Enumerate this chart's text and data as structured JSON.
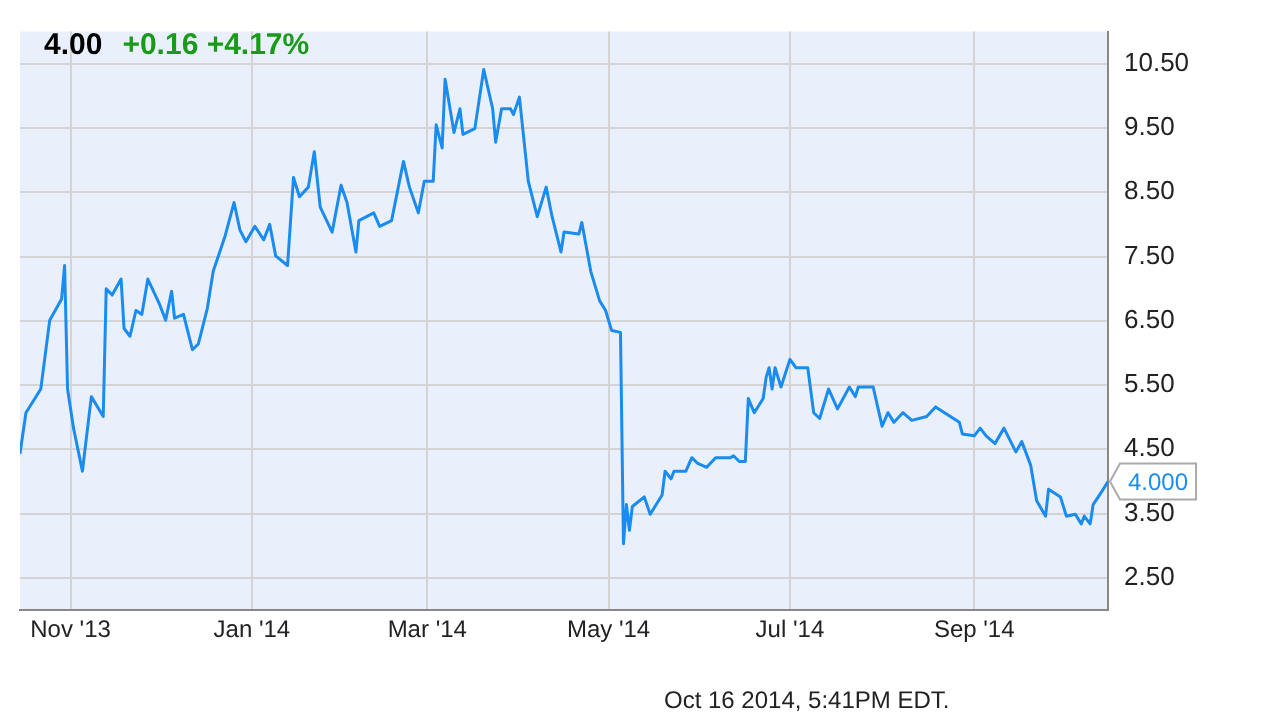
{
  "chart_data": {
    "type": "line",
    "title": "4.00",
    "subtitle": "+0.16 +4.17%",
    "x": [
      "2013-10-15",
      "2013-10-17",
      "2013-10-22",
      "2013-10-25",
      "2013-10-29",
      "2013-10-30",
      "2013-10-31",
      "2013-11-02",
      "2013-11-05",
      "2013-11-08",
      "2013-11-12",
      "2013-11-13",
      "2013-11-15",
      "2013-11-18",
      "2013-11-19",
      "2013-11-21",
      "2013-11-23",
      "2013-11-25",
      "2013-11-27",
      "2013-12-01",
      "2013-12-03",
      "2013-12-05",
      "2013-12-06",
      "2013-12-09",
      "2013-12-12",
      "2013-12-14",
      "2013-12-17",
      "2013-12-19",
      "2013-12-23",
      "2013-12-26",
      "2013-12-28",
      "2013-12-30",
      "2014-01-02",
      "2014-01-05",
      "2014-01-07",
      "2014-01-09",
      "2014-01-13",
      "2014-01-15",
      "2014-01-17",
      "2014-01-20",
      "2014-01-22",
      "2014-01-24",
      "2014-01-28",
      "2014-01-31",
      "2014-02-02",
      "2014-02-05",
      "2014-02-06",
      "2014-02-11",
      "2014-02-13",
      "2014-02-17",
      "2014-02-21",
      "2014-02-23",
      "2014-02-26",
      "2014-02-28",
      "2014-03-03",
      "2014-03-04",
      "2014-03-06",
      "2014-03-07",
      "2014-03-10",
      "2014-03-12",
      "2014-03-13",
      "2014-03-17",
      "2014-03-20",
      "2014-03-23",
      "2014-03-24",
      "2014-03-26",
      "2014-03-29",
      "2014-03-30",
      "2014-04-01",
      "2014-04-04",
      "2014-04-07",
      "2014-04-10",
      "2014-04-12",
      "2014-04-15",
      "2014-04-16",
      "2014-04-21",
      "2014-04-22",
      "2014-04-25",
      "2014-04-28",
      "2014-04-30",
      "2014-05-02",
      "2014-05-05",
      "2014-05-06",
      "2014-05-07",
      "2014-05-08",
      "2014-05-09",
      "2014-05-13",
      "2014-05-15",
      "2014-05-19",
      "2014-05-20",
      "2014-05-22",
      "2014-05-23",
      "2014-05-27",
      "2014-05-29",
      "2014-05-31",
      "2014-06-03",
      "2014-06-06",
      "2014-06-11",
      "2014-06-12",
      "2014-06-14",
      "2014-06-16",
      "2014-06-17",
      "2014-06-19",
      "2014-06-22",
      "2014-06-23",
      "2014-06-24",
      "2014-06-25",
      "2014-06-26",
      "2014-06-28",
      "2014-07-01",
      "2014-07-03",
      "2014-07-07",
      "2014-07-09",
      "2014-07-11",
      "2014-07-14",
      "2014-07-17",
      "2014-07-21",
      "2014-07-23",
      "2014-07-24",
      "2014-07-29",
      "2014-08-01",
      "2014-08-03",
      "2014-08-05",
      "2014-08-08",
      "2014-08-11",
      "2014-08-16",
      "2014-08-19",
      "2014-08-22",
      "2014-08-27",
      "2014-08-28",
      "2014-09-01",
      "2014-09-03",
      "2014-09-05",
      "2014-09-08",
      "2014-09-11",
      "2014-09-15",
      "2014-09-17",
      "2014-09-20",
      "2014-09-22",
      "2014-09-25",
      "2014-09-26",
      "2014-09-30",
      "2014-10-02",
      "2014-10-05",
      "2014-10-07",
      "2014-10-08",
      "2014-10-10",
      "2014-10-11",
      "2014-10-14",
      "2014-10-16"
    ],
    "series": [
      {
        "color": "#1a8cf0",
        "values": [
          4.43,
          5.07,
          5.44,
          6.51,
          6.84,
          7.36,
          5.44,
          4.83,
          4.16,
          5.32,
          5.01,
          7.0,
          6.9,
          7.15,
          6.38,
          6.26,
          6.66,
          6.6,
          7.15,
          6.75,
          6.51,
          6.96,
          6.54,
          6.6,
          6.05,
          6.14,
          6.69,
          7.27,
          7.82,
          8.34,
          7.91,
          7.73,
          7.97,
          7.76,
          8.0,
          7.51,
          7.36,
          8.73,
          8.43,
          8.58,
          9.13,
          8.27,
          7.88,
          8.61,
          8.34,
          7.57,
          8.06,
          8.18,
          7.97,
          8.06,
          8.98,
          8.58,
          8.18,
          8.67,
          8.67,
          9.55,
          9.19,
          10.26,
          9.43,
          9.8,
          9.4,
          9.49,
          10.41,
          9.8,
          9.28,
          9.8,
          9.8,
          9.71,
          9.98,
          8.67,
          8.12,
          8.58,
          8.12,
          7.57,
          7.88,
          7.85,
          8.03,
          7.27,
          6.81,
          6.66,
          6.35,
          6.32,
          3.03,
          3.64,
          3.24,
          3.61,
          3.76,
          3.49,
          3.79,
          4.16,
          4.04,
          4.16,
          4.16,
          4.37,
          4.28,
          4.22,
          4.37,
          4.37,
          4.4,
          4.31,
          4.31,
          5.29,
          5.07,
          5.29,
          5.62,
          5.77,
          5.44,
          5.77,
          5.47,
          5.9,
          5.77,
          5.77,
          5.07,
          4.98,
          5.44,
          5.13,
          5.47,
          5.32,
          5.47,
          5.47,
          4.86,
          5.07,
          4.92,
          5.07,
          4.95,
          5.01,
          5.16,
          5.07,
          4.92,
          4.74,
          4.71,
          4.83,
          4.71,
          4.59,
          4.83,
          4.46,
          4.62,
          4.25,
          3.7,
          3.46,
          3.88,
          3.76,
          3.46,
          3.49,
          3.34,
          3.46,
          3.34,
          3.64,
          3.85,
          4.0
        ]
      }
    ],
    "xlim": [
      "2013-10-15",
      "2014-10-16"
    ],
    "xticks": [
      {
        "value": "2013-11-01",
        "label": "Nov '13"
      },
      {
        "value": "2014-01-01",
        "label": "Jan '14"
      },
      {
        "value": "2014-03-01",
        "label": "Mar '14"
      },
      {
        "value": "2014-05-01",
        "label": "May '14"
      },
      {
        "value": "2014-07-01",
        "label": "Jul '14"
      },
      {
        "value": "2014-09-01",
        "label": "Sep '14"
      }
    ],
    "ylim": [
      2.0,
      11.0
    ],
    "yticks": [
      {
        "value": 2.5,
        "label": "2.50"
      },
      {
        "value": 3.5,
        "label": "3.50"
      },
      {
        "value": 4.5,
        "label": "4.50"
      },
      {
        "value": 5.5,
        "label": "5.50"
      },
      {
        "value": 6.5,
        "label": "6.50"
      },
      {
        "value": 7.5,
        "label": "7.50"
      },
      {
        "value": 8.5,
        "label": "8.50"
      },
      {
        "value": 9.5,
        "label": "9.50"
      },
      {
        "value": 10.5,
        "label": "10.50"
      }
    ],
    "grid": true,
    "legend": false,
    "marker": "none",
    "line_style": "solid",
    "annotations": [
      {
        "text": "4.000",
        "x": "2014-10-16",
        "y": 4.0
      },
      "Oct 16 2014, 5:41PM EDT."
    ]
  }
}
